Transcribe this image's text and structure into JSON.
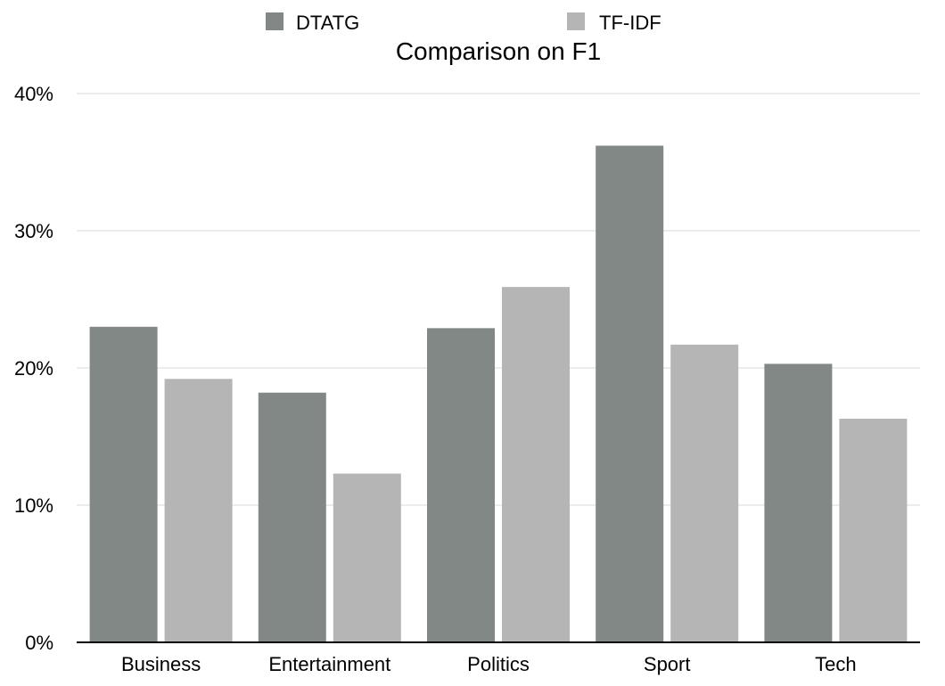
{
  "chart_data": {
    "type": "bar",
    "title": "Comparison on F1",
    "xlabel": "",
    "ylabel": "",
    "categories": [
      "Business",
      "Entertainment",
      "Politics",
      "Sport",
      "Tech"
    ],
    "series": [
      {
        "name": "DTATG",
        "color": "#828885",
        "values": [
          23.0,
          18.2,
          22.9,
          36.2,
          20.3
        ]
      },
      {
        "name": "TF-IDF",
        "color": "#b5b5b5",
        "values": [
          19.2,
          12.3,
          25.9,
          21.7,
          16.3
        ]
      }
    ],
    "ylim": [
      0,
      40
    ],
    "yticks": [
      {
        "value": 0,
        "label": "0%"
      },
      {
        "value": 10,
        "label": "10%"
      },
      {
        "value": 20,
        "label": "20%"
      },
      {
        "value": 30,
        "label": "30%"
      },
      {
        "value": 40,
        "label": "40%"
      }
    ],
    "grid": true,
    "legend_position": "top"
  }
}
